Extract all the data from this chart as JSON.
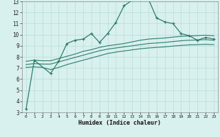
{
  "xlabel": "Humidex (Indice chaleur)",
  "background_color": "#d8f0ee",
  "grid_color": "#b8ddd8",
  "line_color": "#2a7a6a",
  "xlim": [
    -0.5,
    23.5
  ],
  "ylim": [
    3,
    13
  ],
  "xticks": [
    0,
    1,
    2,
    3,
    4,
    5,
    6,
    7,
    8,
    9,
    10,
    11,
    12,
    13,
    14,
    15,
    16,
    17,
    18,
    19,
    20,
    21,
    22,
    23
  ],
  "yticks": [
    3,
    4,
    5,
    6,
    7,
    8,
    9,
    10,
    11,
    12,
    13
  ],
  "line1_x": [
    0,
    1,
    3,
    4,
    5,
    6,
    7,
    8,
    9,
    10,
    11,
    12,
    13,
    14,
    15,
    16,
    17,
    18,
    19,
    20,
    21,
    22,
    23
  ],
  "line1_y": [
    3.3,
    7.7,
    6.5,
    7.6,
    9.2,
    9.5,
    9.6,
    10.1,
    9.3,
    10.1,
    11.1,
    12.6,
    13.1,
    13.1,
    13.2,
    11.5,
    11.15,
    11.0,
    10.1,
    9.9,
    9.5,
    9.75,
    9.6
  ],
  "line2_x": [
    0,
    1,
    2,
    3,
    4,
    5,
    6,
    7,
    8,
    9,
    10,
    11,
    12,
    13,
    14,
    15,
    16,
    17,
    18,
    19,
    20,
    21,
    22,
    23
  ],
  "line2_y": [
    7.6,
    7.7,
    7.65,
    7.65,
    7.85,
    8.05,
    8.25,
    8.5,
    8.65,
    8.85,
    9.0,
    9.1,
    9.2,
    9.35,
    9.5,
    9.6,
    9.65,
    9.7,
    9.78,
    9.85,
    9.88,
    9.92,
    9.95,
    9.9
  ],
  "line3_x": [
    0,
    1,
    2,
    3,
    4,
    5,
    6,
    7,
    8,
    9,
    10,
    11,
    12,
    13,
    14,
    15,
    16,
    17,
    18,
    19,
    20,
    21,
    22,
    23
  ],
  "line3_y": [
    7.3,
    7.4,
    7.35,
    7.35,
    7.55,
    7.75,
    7.95,
    8.15,
    8.35,
    8.55,
    8.7,
    8.8,
    8.9,
    9.0,
    9.1,
    9.2,
    9.25,
    9.3,
    9.38,
    9.45,
    9.5,
    9.52,
    9.55,
    9.5
  ],
  "line4_x": [
    0,
    1,
    2,
    3,
    4,
    5,
    6,
    7,
    8,
    9,
    10,
    11,
    12,
    13,
    14,
    15,
    16,
    17,
    18,
    19,
    20,
    21,
    22,
    23
  ],
  "line4_y": [
    7.05,
    7.1,
    7.05,
    6.85,
    7.05,
    7.3,
    7.5,
    7.7,
    7.9,
    8.1,
    8.3,
    8.43,
    8.53,
    8.63,
    8.73,
    8.8,
    8.85,
    8.9,
    8.97,
    9.03,
    9.08,
    9.1,
    9.13,
    9.1
  ]
}
